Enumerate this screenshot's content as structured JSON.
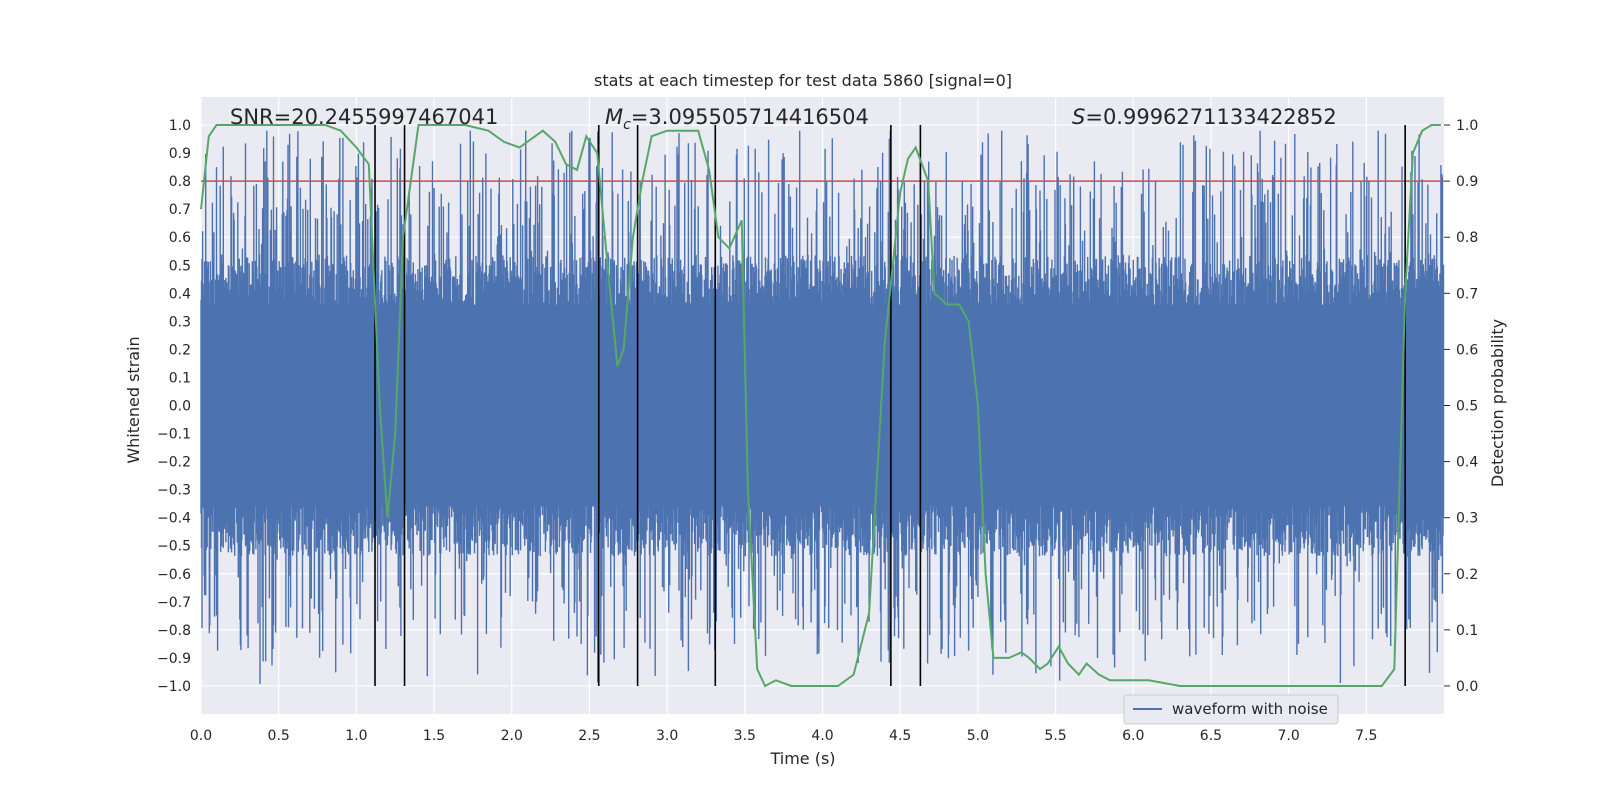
{
  "chart_data": {
    "type": "line",
    "title": "stats at each timestep for test data 5860 [signal=0]",
    "xlabel": "Time (s)",
    "ylabel_left": "Whitened strain",
    "ylabel_right": "Detection probability",
    "xlim": [
      0,
      8
    ],
    "ylim_left": [
      -1.1,
      1.1
    ],
    "ylim_right": [
      -0.05,
      1.05
    ],
    "x_ticks": [
      "0.0",
      "0.5",
      "1.0",
      "1.5",
      "2.0",
      "2.5",
      "3.0",
      "3.5",
      "4.0",
      "4.5",
      "5.0",
      "5.5",
      "6.0",
      "6.5",
      "7.0",
      "7.5"
    ],
    "y_ticks_left": [
      "1.0",
      "0.9",
      "0.8",
      "0.7",
      "0.6",
      "0.5",
      "0.4",
      "0.3",
      "0.2",
      "0.1",
      "0.0",
      "−0.1",
      "−0.2",
      "−0.3",
      "−0.4",
      "−0.5",
      "−0.6",
      "−0.7",
      "−0.8",
      "−0.9",
      "−1.0"
    ],
    "y_ticks_right": [
      "1.0",
      "0.9",
      "0.8",
      "0.7",
      "0.6",
      "0.5",
      "0.4",
      "0.3",
      "0.2",
      "0.1",
      "0.0"
    ],
    "grid": true,
    "legend": {
      "position": "bottom-right",
      "entries": [
        "waveform with noise"
      ]
    },
    "annotations": {
      "snr": "SNR=20.2455997467041",
      "mc_symbol": "M",
      "mc_sub": "c",
      "mc_value": "=3.095505714416504",
      "s_symbol": "S",
      "s_value": "=0.9996271133422852"
    },
    "threshold": 0.9,
    "vertical_markers": [
      1.12,
      1.31,
      2.56,
      2.81,
      3.31,
      4.44,
      4.63,
      7.75
    ],
    "waveform": {
      "name": "waveform with noise",
      "color": "#4c72b0",
      "t_start": 0,
      "t_end": 8,
      "typical_amplitude": 0.43,
      "max_positive": 0.98,
      "max_negative": -1.0
    },
    "probability": {
      "color": "#55a868",
      "x": [
        0.0,
        0.05,
        0.1,
        0.2,
        0.5,
        0.8,
        0.9,
        1.0,
        1.08,
        1.15,
        1.2,
        1.25,
        1.3,
        1.35,
        1.4,
        1.5,
        1.7,
        1.85,
        1.95,
        2.05,
        2.2,
        2.28,
        2.35,
        2.42,
        2.48,
        2.55,
        2.62,
        2.68,
        2.72,
        2.78,
        2.84,
        2.9,
        3.0,
        3.1,
        3.2,
        3.27,
        3.33,
        3.4,
        3.48,
        3.52,
        3.58,
        3.63,
        3.7,
        3.8,
        3.9,
        4.0,
        4.1,
        4.2,
        4.3,
        4.4,
        4.5,
        4.55,
        4.6,
        4.68,
        4.72,
        4.8,
        4.88,
        4.94,
        5.0,
        5.05,
        5.1,
        5.2,
        5.28,
        5.33,
        5.4,
        5.45,
        5.52,
        5.58,
        5.65,
        5.7,
        5.78,
        5.85,
        5.95,
        6.1,
        6.3,
        6.5,
        6.8,
        7.0,
        7.2,
        7.4,
        7.6,
        7.68,
        7.75,
        7.8,
        7.86,
        7.92,
        7.98
      ],
      "y": [
        0.85,
        0.98,
        1.0,
        1.0,
        1.0,
        1.0,
        0.99,
        0.96,
        0.93,
        0.5,
        0.3,
        0.45,
        0.8,
        0.9,
        1.0,
        1.0,
        1.0,
        0.99,
        0.97,
        0.96,
        0.99,
        0.97,
        0.93,
        0.92,
        0.98,
        0.95,
        0.74,
        0.57,
        0.6,
        0.8,
        0.9,
        0.98,
        0.99,
        0.99,
        0.99,
        0.92,
        0.8,
        0.78,
        0.83,
        0.35,
        0.03,
        0.0,
        0.01,
        0.0,
        0.0,
        0.0,
        0.0,
        0.02,
        0.13,
        0.61,
        0.88,
        0.94,
        0.96,
        0.9,
        0.7,
        0.68,
        0.68,
        0.65,
        0.5,
        0.2,
        0.05,
        0.05,
        0.06,
        0.05,
        0.03,
        0.04,
        0.07,
        0.04,
        0.02,
        0.04,
        0.02,
        0.01,
        0.01,
        0.01,
        0.0,
        0.0,
        0.0,
        0.0,
        0.0,
        0.0,
        0.0,
        0.03,
        0.7,
        0.95,
        0.99,
        1.0,
        1.0
      ]
    }
  }
}
